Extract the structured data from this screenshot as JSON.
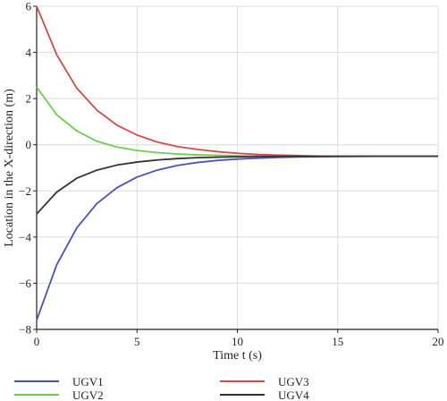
{
  "chart_data": {
    "type": "line",
    "xlabel": "Time t (s)",
    "ylabel": "Location in the X-direction (m)",
    "xlim": [
      0,
      20
    ],
    "ylim": [
      -8,
      6
    ],
    "xticks": [
      0,
      5,
      10,
      15,
      20
    ],
    "yticks": [
      -8,
      -6,
      -4,
      -2,
      0,
      2,
      4,
      6
    ],
    "grid": true,
    "legend_position": "bottom",
    "x": [
      0,
      1,
      2,
      3,
      4,
      5,
      6,
      7,
      8,
      9,
      10,
      11,
      12,
      13,
      14,
      15,
      16,
      17,
      18,
      19,
      20
    ],
    "series": [
      {
        "name": "UGV1",
        "color": "#4a52b0",
        "values": [
          -7.6,
          -5.2,
          -3.6,
          -2.55,
          -1.86,
          -1.4,
          -1.1,
          -0.9,
          -0.77,
          -0.68,
          -0.62,
          -0.58,
          -0.55,
          -0.53,
          -0.52,
          -0.51,
          -0.505,
          -0.5,
          -0.5,
          -0.5,
          -0.5
        ]
      },
      {
        "name": "UGV2",
        "color": "#6ecb4e",
        "values": [
          2.5,
          1.3,
          0.6,
          0.15,
          -0.1,
          -0.25,
          -0.34,
          -0.4,
          -0.44,
          -0.46,
          -0.48,
          -0.49,
          -0.495,
          -0.5,
          -0.5,
          -0.5,
          -0.5,
          -0.5,
          -0.5,
          -0.5,
          -0.5
        ]
      },
      {
        "name": "UGV3",
        "color": "#d24b4b",
        "values": [
          6.0,
          3.9,
          2.45,
          1.5,
          0.85,
          0.42,
          0.12,
          -0.08,
          -0.2,
          -0.3,
          -0.37,
          -0.42,
          -0.45,
          -0.47,
          -0.49,
          -0.5,
          -0.5,
          -0.5,
          -0.5,
          -0.5,
          -0.5
        ]
      },
      {
        "name": "UGV4",
        "color": "#333333",
        "values": [
          -3.0,
          -2.05,
          -1.45,
          -1.1,
          -0.88,
          -0.75,
          -0.66,
          -0.6,
          -0.56,
          -0.54,
          -0.52,
          -0.51,
          -0.505,
          -0.5,
          -0.5,
          -0.5,
          -0.5,
          -0.5,
          -0.5,
          -0.5,
          -0.5
        ]
      }
    ]
  }
}
